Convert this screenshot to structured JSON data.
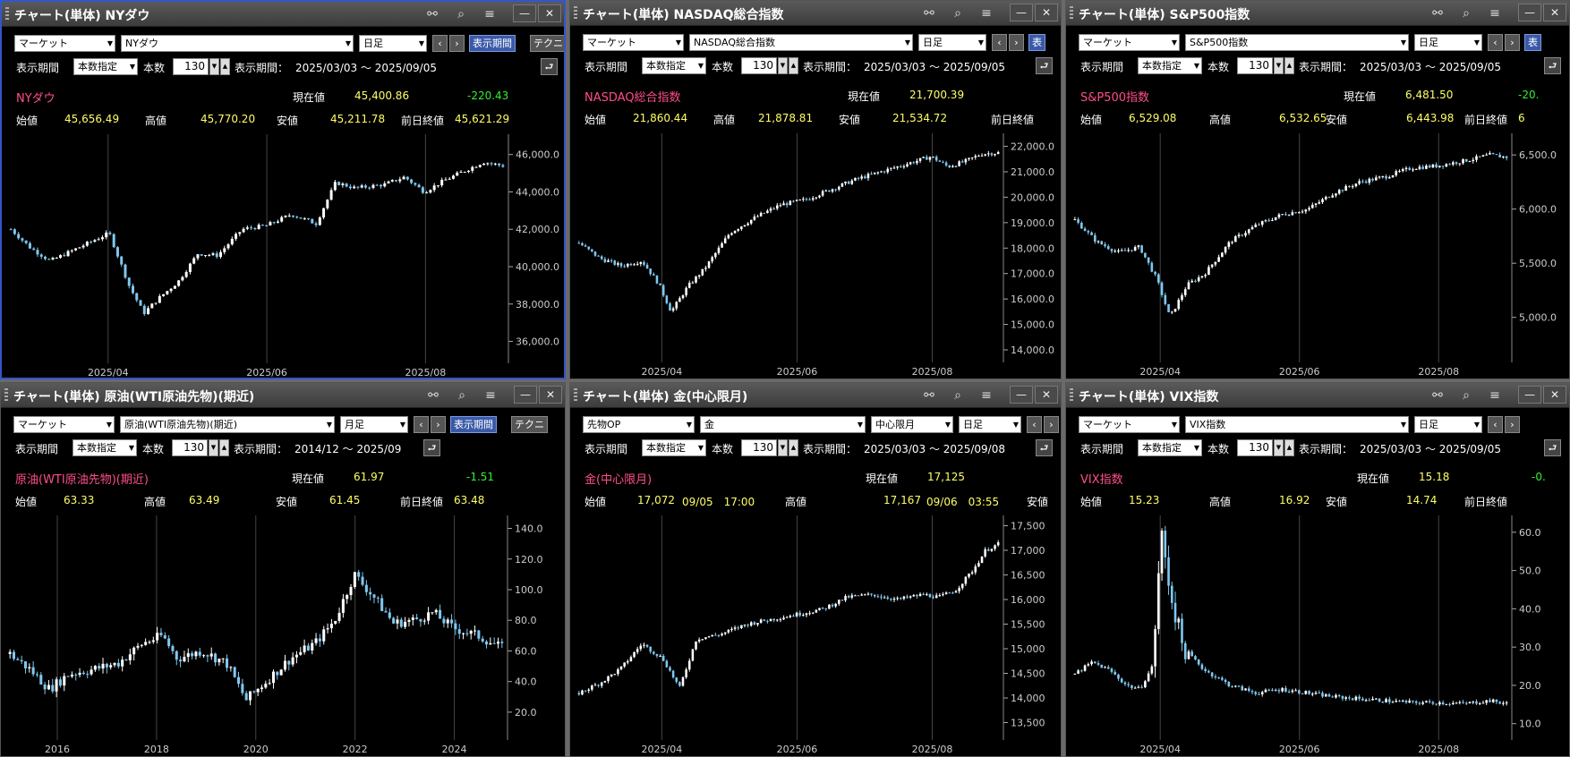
{
  "panels": [
    {
      "id": "ny",
      "title": "チャート(単体) NYダウ",
      "active": true,
      "selectors": [
        "マーケット",
        "NYダウ",
        "日足"
      ],
      "period_btn": "表示期間",
      "tech_btn": "テクニ",
      "row2": {
        "label_period": "表示期間",
        "mode": "本数指定",
        "label_count": "本数",
        "count": "130",
        "range_label": "表示期間：",
        "range": "2025/03/03 ～ 2025/09/05"
      },
      "name": "NYダウ",
      "current_label": "現在値",
      "current": "45,400.86",
      "change": "-220.43",
      "open_label": "始値",
      "open": "45,656.49",
      "high_label": "高値",
      "high": "45,770.20",
      "low_label": "安値",
      "low": "45,211.78",
      "prev_label": "前日終値",
      "prev": "45,621.29",
      "chart": {
        "ymin": 35500,
        "ymax": 46800,
        "yticks": [
          "46,000.0",
          "44,000.0",
          "42,000.0",
          "40,000.0",
          "38,000.0",
          "36,000.0"
        ],
        "yvals": [
          46000,
          44000,
          42000,
          40000,
          38000,
          36000
        ],
        "xticks": [
          "2025/04",
          "2025/06",
          "2025/08"
        ]
      }
    },
    {
      "id": "nasdaq",
      "title": "チャート(単体) NASDAQ総合指数",
      "active": false,
      "selectors": [
        "マーケット",
        "NASDAQ総合指数",
        "日足"
      ],
      "period_btn": "表",
      "row2": {
        "label_period": "表示期間",
        "mode": "本数指定",
        "label_count": "本数",
        "count": "130",
        "range_label": "表示期間：",
        "range": "2025/03/03 ～ 2025/09/05"
      },
      "name": "NASDAQ総合指数",
      "current_label": "現在値",
      "current": "21,700.39",
      "open_label": "始値",
      "open": "21,860.44",
      "high_label": "高値",
      "high": "21,878.81",
      "low_label": "安値",
      "low": "21,534.72",
      "prev_label": "前日終値",
      "chart": {
        "ymin": 14000,
        "ymax": 22300,
        "yticks": [
          "22,000.0",
          "21,000.0",
          "20,000.0",
          "19,000.0",
          "18,000.0",
          "17,000.0",
          "16,000.0",
          "15,000.0",
          "14,000.0"
        ],
        "yvals": [
          22000,
          21000,
          20000,
          19000,
          18000,
          17000,
          16000,
          15000,
          14000
        ],
        "xticks": [
          "2025/04",
          "2025/06",
          "2025/08"
        ]
      }
    },
    {
      "id": "sp",
      "title": "チャート(単体) S&P500指数",
      "active": false,
      "selectors": [
        "マーケット",
        "S&P500指数",
        "日足"
      ],
      "period_btn": "表",
      "row2": {
        "label_period": "表示期間",
        "mode": "本数指定",
        "label_count": "本数",
        "count": "130",
        "range_label": "表示期間：",
        "range": "2025/03/03 ～ 2025/09/05"
      },
      "name": "S&P500指数",
      "current_label": "現在値",
      "current": "6,481.50",
      "change": "-20.",
      "open_label": "始値",
      "open": "6,529.08",
      "high_label": "高値",
      "high": "6,532.65",
      "low_label": "安値",
      "low": "6,443.98",
      "prev_label": "前日終値",
      "prev": "6",
      "chart": {
        "ymin": 4700,
        "ymax": 6650,
        "yticks": [
          "6,500.0",
          "6,000.0",
          "5,500.0",
          "5,000.0"
        ],
        "yvals": [
          6500,
          6000,
          5500,
          5000
        ],
        "xticks": [
          "2025/04",
          "2025/06",
          "2025/08"
        ]
      }
    },
    {
      "id": "wti",
      "title": "チャート(単体) 原油(WTI原油先物)(期近)",
      "active": false,
      "selectors": [
        "マーケット",
        "原油(WTI原油先物)(期近)",
        "月足"
      ],
      "period_btn": "表示期間",
      "tech_btn": "テクニ",
      "row2": {
        "label_period": "表示期間",
        "mode": "本数指定",
        "label_count": "本数",
        "count": "130",
        "range_label": "表示期間：",
        "range": "2014/12 ～ 2025/09"
      },
      "name": "原油(WTI原油先物)(期近)",
      "current_label": "現在値",
      "current": "61.97",
      "change": "-1.51",
      "open_label": "始値",
      "open": "63.33",
      "high_label": "高値",
      "high": "63.49",
      "low_label": "安値",
      "low": "61.45",
      "prev_label": "前日終値",
      "prev": "63.48",
      "chart": {
        "ymin": 10,
        "ymax": 145,
        "yticks": [
          "140.0",
          "120.0",
          "100.0",
          "80.0",
          "60.0",
          "40.0",
          "20.0"
        ],
        "yvals": [
          140,
          120,
          100,
          80,
          60,
          40,
          20
        ],
        "xticks": [
          "2016",
          "2018",
          "2020",
          "2022",
          "2024"
        ]
      }
    },
    {
      "id": "gold",
      "title": "チャート(単体) 金(中心限月)",
      "active": false,
      "selectors": [
        "先物OP",
        "金",
        "中心限月",
        "日足"
      ],
      "row2": {
        "label_period": "表示期間",
        "mode": "本数指定",
        "label_count": "本数",
        "count": "130",
        "range_label": "表示期間：",
        "range": "2025/03/03 ～ 2025/09/08"
      },
      "name": "金(中心限月)",
      "current_label": "現在値",
      "current": "17,125",
      "open_label": "始値",
      "open": "17,072",
      "open_time": "09/05　17:00",
      "high_label": "高値",
      "high": "17,167",
      "high_time": "09/06　03:55",
      "low_label": "安値",
      "chart": {
        "ymin": 13400,
        "ymax": 17600,
        "yticks": [
          "17,500",
          "17,000",
          "16,500",
          "16,000",
          "15,500",
          "15,000",
          "14,500",
          "14,000",
          "13,500"
        ],
        "yvals": [
          17500,
          17000,
          16500,
          16000,
          15500,
          15000,
          14500,
          14000,
          13500
        ],
        "xticks": [
          "2025/04",
          "2025/06",
          "2025/08"
        ]
      }
    },
    {
      "id": "vix",
      "title": "チャート(単体) VIX指数",
      "active": false,
      "selectors": [
        "マーケット",
        "VIX指数",
        "日足"
      ],
      "row2": {
        "label_period": "表示期間",
        "mode": "本数指定",
        "label_count": "本数",
        "count": "130",
        "range_label": "表示期間：",
        "range": "2025/03/03 ～ 2025/09/05"
      },
      "name": "VIX指数",
      "current_label": "現在値",
      "current": "15.18",
      "change": "-0.",
      "open_label": "始値",
      "open": "15.23",
      "high_label": "高値",
      "high": "16.92",
      "low_label": "安値",
      "low": "14.74",
      "prev_label": "前日終値",
      "chart": {
        "ymin": 9,
        "ymax": 63,
        "yticks": [
          "60.0",
          "50.0",
          "40.0",
          "30.0",
          "20.0",
          "10.0"
        ],
        "yvals": [
          60,
          50,
          40,
          30,
          20,
          10
        ],
        "xticks": [
          "2025/04",
          "2025/06",
          "2025/08"
        ]
      }
    }
  ],
  "chart_data": [
    {
      "type": "candlestick",
      "series_of": "ny",
      "x": [
        "2025/03",
        "2025/04",
        "2025/05",
        "2025/06",
        "2025/07",
        "2025/08",
        "2025/09"
      ],
      "close": [
        42000,
        40600,
        42300,
        43900,
        44600,
        45500,
        45400
      ]
    },
    {
      "type": "candlestick",
      "series_of": "nasdaq",
      "x": [
        "2025/03",
        "2025/04",
        "2025/05",
        "2025/06",
        "2025/07",
        "2025/08",
        "2025/09"
      ],
      "close": [
        17800,
        17200,
        19000,
        19900,
        20900,
        21500,
        21700
      ]
    },
    {
      "type": "candlestick",
      "series_of": "sp",
      "x": [
        "2025/03",
        "2025/04",
        "2025/05",
        "2025/06",
        "2025/07",
        "2025/08",
        "2025/09"
      ],
      "close": [
        5700,
        5500,
        5900,
        6150,
        6350,
        6450,
        6480
      ]
    },
    {
      "type": "candlestick",
      "series_of": "wti",
      "x": [
        "2015",
        "2016",
        "2017",
        "2018",
        "2019",
        "2020",
        "2021",
        "2022",
        "2023",
        "2024",
        "2025"
      ],
      "close": [
        48,
        38,
        52,
        58,
        57,
        35,
        70,
        110,
        78,
        72,
        62
      ]
    },
    {
      "type": "candlestick",
      "series_of": "gold",
      "x": [
        "2025/03",
        "2025/04",
        "2025/05",
        "2025/06",
        "2025/07",
        "2025/08",
        "2025/09"
      ],
      "close": [
        14000,
        14900,
        15400,
        15700,
        16100,
        16000,
        17125
      ]
    },
    {
      "type": "candlestick",
      "series_of": "vix",
      "x": [
        "2025/03",
        "2025/04",
        "2025/05",
        "2025/06",
        "2025/07",
        "2025/08",
        "2025/09"
      ],
      "close": [
        23,
        45,
        19,
        17,
        16,
        15,
        15.2
      ]
    }
  ]
}
